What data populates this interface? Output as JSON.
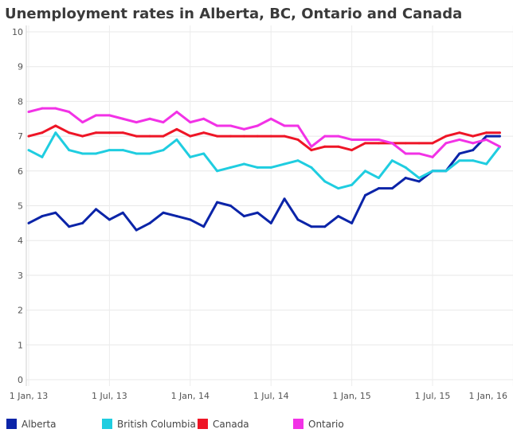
{
  "chart_data": {
    "type": "line",
    "title": "Unemployment rates in Alberta, BC, Ontario and Canada",
    "xlabel": "",
    "ylabel": "",
    "ylim": [
      0,
      10
    ],
    "yticks": [
      "0",
      "1",
      "2",
      "3",
      "4",
      "5",
      "6",
      "7",
      "8",
      "9",
      "10"
    ],
    "xticks": [
      {
        "month": "2013-01",
        "label": "1 Jan, 13"
      },
      {
        "month": "2013-07",
        "label": "1 Jul, 13"
      },
      {
        "month": "2014-01",
        "label": "1 Jan, 14"
      },
      {
        "month": "2014-07",
        "label": "1 Jul, 14"
      },
      {
        "month": "2015-01",
        "label": "1 Jan, 15"
      },
      {
        "month": "2015-07",
        "label": "1 Jul, 15"
      },
      {
        "month": "2016-01",
        "label": "1 Jan, 16"
      }
    ],
    "x": [
      "2013-01",
      "2013-02",
      "2013-03",
      "2013-04",
      "2013-05",
      "2013-06",
      "2013-07",
      "2013-08",
      "2013-09",
      "2013-10",
      "2013-11",
      "2013-12",
      "2014-01",
      "2014-02",
      "2014-03",
      "2014-04",
      "2014-05",
      "2014-06",
      "2014-07",
      "2014-08",
      "2014-09",
      "2014-10",
      "2014-11",
      "2014-12",
      "2015-01",
      "2015-02",
      "2015-03",
      "2015-04",
      "2015-05",
      "2015-06",
      "2015-07",
      "2015-08",
      "2015-09",
      "2015-10",
      "2015-11",
      "2015-12"
    ],
    "grid": true,
    "legend_position": "bottom",
    "series": [
      {
        "name": "Alberta",
        "color": "#0b24a8",
        "values": [
          4.5,
          4.7,
          4.8,
          4.4,
          4.5,
          4.9,
          4.6,
          4.8,
          4.3,
          4.5,
          4.8,
          4.7,
          4.6,
          4.4,
          5.1,
          5.0,
          4.7,
          4.8,
          4.5,
          5.2,
          4.6,
          4.4,
          4.4,
          4.7,
          4.5,
          5.3,
          5.5,
          5.5,
          5.8,
          5.7,
          6.0,
          6.0,
          6.5,
          6.6,
          7.0,
          7.0
        ]
      },
      {
        "name": "British Columbia",
        "color": "#1fcde0",
        "values": [
          6.6,
          6.4,
          7.1,
          6.6,
          6.5,
          6.5,
          6.6,
          6.6,
          6.5,
          6.5,
          6.6,
          6.9,
          6.4,
          6.5,
          6.0,
          6.1,
          6.2,
          6.1,
          6.1,
          6.2,
          6.3,
          6.1,
          5.7,
          5.5,
          5.6,
          6.0,
          5.8,
          6.3,
          6.1,
          5.8,
          6.0,
          6.0,
          6.3,
          6.3,
          6.2,
          6.7
        ]
      },
      {
        "name": "Canada",
        "color": "#ee1526",
        "values": [
          7.0,
          7.1,
          7.3,
          7.1,
          7.0,
          7.1,
          7.1,
          7.1,
          7.0,
          7.0,
          7.0,
          7.2,
          7.0,
          7.1,
          7.0,
          7.0,
          7.0,
          7.0,
          7.0,
          7.0,
          6.9,
          6.6,
          6.7,
          6.7,
          6.6,
          6.8,
          6.8,
          6.8,
          6.8,
          6.8,
          6.8,
          7.0,
          7.1,
          7.0,
          7.1,
          7.1
        ]
      },
      {
        "name": "Ontario",
        "color": "#f232e6",
        "values": [
          7.7,
          7.8,
          7.8,
          7.7,
          7.4,
          7.6,
          7.6,
          7.5,
          7.4,
          7.5,
          7.4,
          7.7,
          7.4,
          7.5,
          7.3,
          7.3,
          7.2,
          7.3,
          7.5,
          7.3,
          7.3,
          6.7,
          7.0,
          7.0,
          6.9,
          6.9,
          6.9,
          6.8,
          6.5,
          6.5,
          6.4,
          6.8,
          6.9,
          6.8,
          6.9,
          6.7
        ]
      }
    ]
  }
}
